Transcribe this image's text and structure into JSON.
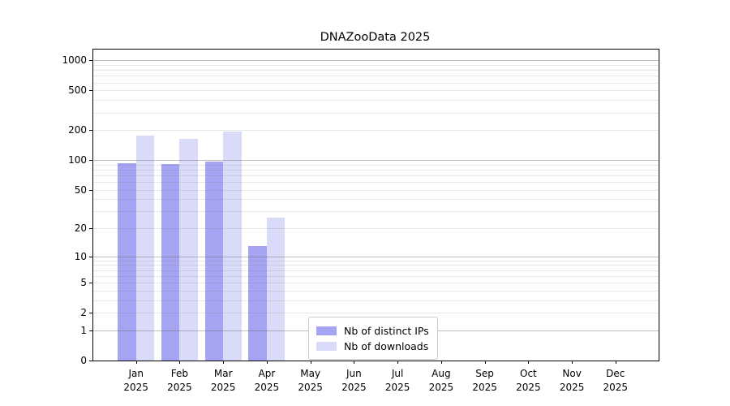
{
  "title": "DNAZooData 2025",
  "chart_data": {
    "type": "bar",
    "title": "DNAZooData 2025",
    "categories": [
      "Jan",
      "Feb",
      "Mar",
      "Apr",
      "May",
      "Jun",
      "Jul",
      "Aug",
      "Sep",
      "Oct",
      "Nov",
      "Dec"
    ],
    "year_label": "2025",
    "series": [
      {
        "name": "Nb of distinct IPs",
        "color": "#a4a4f2",
        "values": [
          93,
          91,
          97,
          13,
          0,
          0,
          0,
          0,
          0,
          0,
          0,
          0
        ]
      },
      {
        "name": "Nb of downloads",
        "color": "#dadaf9",
        "values": [
          175,
          162,
          195,
          26,
          0,
          0,
          0,
          0,
          0,
          0,
          0,
          0
        ]
      }
    ],
    "y_axis": {
      "scale": "log10(1+y)",
      "tick_labels": [
        1000,
        500,
        200,
        100,
        50,
        20,
        10,
        5,
        2,
        1,
        0
      ],
      "top_value": 1283,
      "major_grid": [
        1,
        10,
        100,
        1000
      ],
      "minor_grid": [
        2,
        3,
        4,
        5,
        6,
        7,
        8,
        9,
        20,
        30,
        40,
        50,
        60,
        70,
        80,
        90,
        200,
        300,
        400,
        500,
        600,
        700,
        800,
        900
      ]
    },
    "legend": {
      "entries": [
        "Nb of distinct IPs",
        "Nb of downloads"
      ],
      "position": "lower center"
    },
    "grid": true
  }
}
